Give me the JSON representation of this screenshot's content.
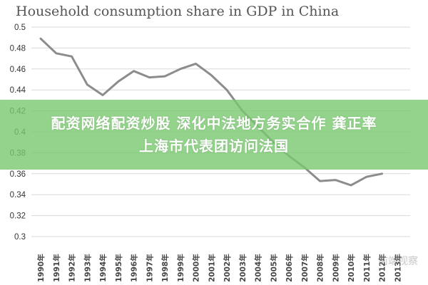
{
  "chart_data": {
    "type": "line",
    "title": "Household consumption share in GDP in China",
    "xlabel": "",
    "ylabel": "",
    "categories": [
      "1990年",
      "1991年",
      "1992年",
      "1993年",
      "1994年",
      "1995年",
      "1996年",
      "1997年",
      "1998年",
      "1999年",
      "2000年",
      "2001年",
      "2002年",
      "2003年",
      "2004年",
      "2005年",
      "2006年",
      "2007年",
      "2008年",
      "2009年",
      "2010年",
      "2011年",
      "2012年",
      "2013年"
    ],
    "series": [
      {
        "values": [
          0.489,
          0.475,
          0.472,
          0.445,
          0.435,
          0.448,
          0.458,
          0.452,
          0.453,
          0.46,
          0.465,
          0.454,
          0.44,
          0.42,
          0.405,
          0.39,
          0.377,
          0.366,
          0.353,
          0.354,
          0.349,
          0.357,
          0.36,
          null
        ]
      }
    ],
    "ylim": [
      0.3,
      0.5
    ],
    "yticks": [
      "0.5",
      "0.48",
      "0.46",
      "0.44",
      "0.42",
      "0.4",
      "0.38",
      "0.36",
      "0.34",
      "0.32",
      "0.3"
    ],
    "grid": true,
    "line_color": "#8c8c8c"
  },
  "overlay": {
    "line1": "配资网络配资炒股 深化中法地方务实合作 龚正率",
    "line2": "上海市代表团访问法国"
  },
  "watermark": "前端视察"
}
